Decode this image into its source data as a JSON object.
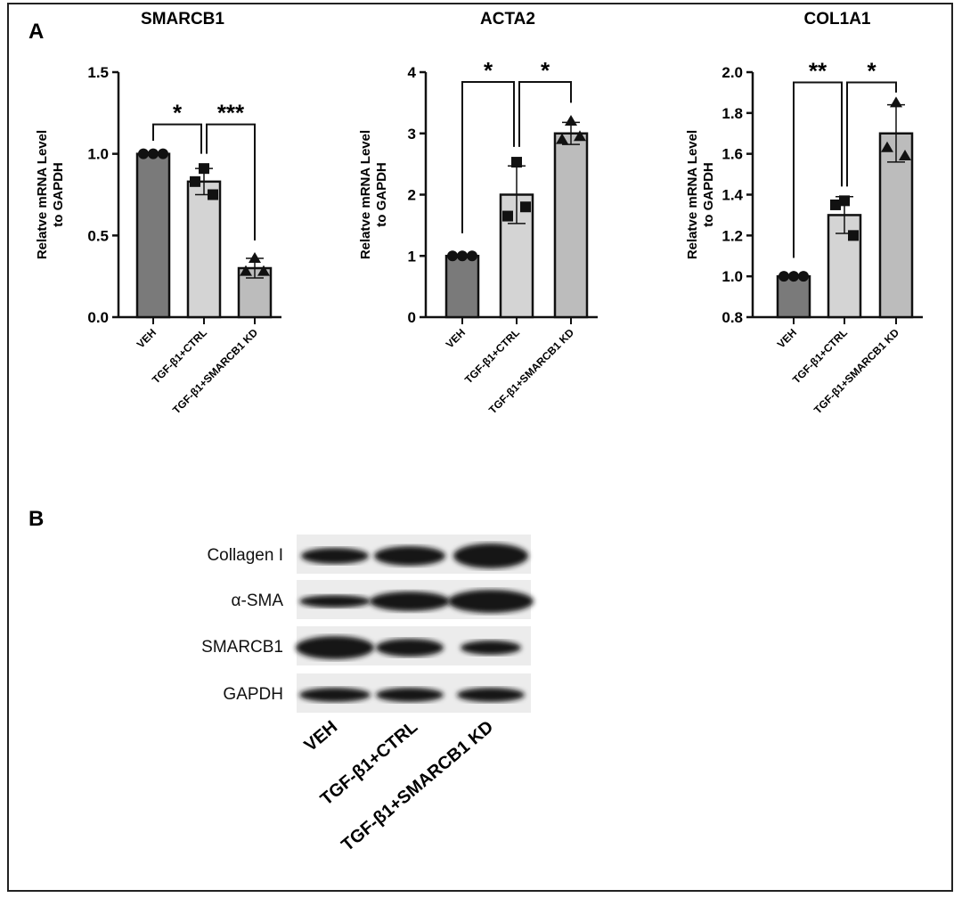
{
  "panel_labels": {
    "a": "A",
    "b": "B"
  },
  "chart_data": [
    {
      "type": "bar",
      "title": "SMARCB1",
      "ylabel": "Relatve mRNA Level to GAPDH",
      "ylabel_lines": [
        "Relatve mRNA Level",
        "to GAPDH"
      ],
      "categories": [
        "VEH",
        "TGF-β1+CTRL",
        "TGF-β1+SMARCB1 KD"
      ],
      "values": [
        1.0,
        0.83,
        0.3
      ],
      "sd": [
        0.0,
        0.08,
        0.06
      ],
      "points": [
        [
          1.0,
          1.0,
          1.0
        ],
        [
          0.91,
          0.83,
          0.75
        ],
        [
          0.36,
          0.28,
          0.28
        ]
      ],
      "ylim": [
        0,
        1.5
      ],
      "yticks": [
        "0.0",
        "0.5",
        "1.0",
        "1.5"
      ],
      "ytick_values": [
        0,
        0.5,
        1.0,
        1.5
      ],
      "significance": [
        {
          "from": 0,
          "to": 1,
          "label": "*",
          "level": 1.18,
          "legs": [
            1.08,
            1.0
          ]
        },
        {
          "from": 1,
          "to": 2,
          "label": "***",
          "level": 1.18,
          "legs": [
            1.0,
            0.47
          ]
        }
      ]
    },
    {
      "type": "bar",
      "title": "ACTA2",
      "ylabel": "Relatve mRNA Level to GAPDH",
      "ylabel_lines": [
        "Relatve mRNA Level",
        "to GAPDH"
      ],
      "categories": [
        "VEH",
        "TGF-β1+CTRL",
        "TGF-β1+SMARCB1 KD"
      ],
      "values": [
        1.0,
        2.0,
        3.0
      ],
      "sd": [
        0.0,
        0.47,
        0.18
      ],
      "points": [
        [
          1.0,
          1.0,
          1.0
        ],
        [
          2.53,
          1.65,
          1.8
        ],
        [
          3.2,
          2.9,
          2.95
        ]
      ],
      "ylim": [
        0,
        4
      ],
      "yticks": [
        "0",
        "1",
        "2",
        "3",
        "4"
      ],
      "ytick_values": [
        0,
        1,
        2,
        3,
        4
      ],
      "significance": [
        {
          "from": 0,
          "to": 1,
          "label": "*",
          "level": 3.84,
          "legs": [
            1.37,
            2.78
          ]
        },
        {
          "from": 1,
          "to": 2,
          "label": "*",
          "level": 3.84,
          "legs": [
            2.78,
            3.5
          ]
        }
      ]
    },
    {
      "type": "bar",
      "title": "COL1A1",
      "ylabel": "Relatve mRNA Level to GAPDH",
      "ylabel_lines": [
        "Relatve mRNA Level",
        "to GAPDH"
      ],
      "categories": [
        "VEH",
        "TGF-β1+CTRL",
        "TGF-β1+SMARCB1 KD"
      ],
      "values": [
        1.0,
        1.3,
        1.7
      ],
      "sd": [
        0.0,
        0.09,
        0.14
      ],
      "points": [
        [
          1.0,
          1.0,
          1.0
        ],
        [
          1.37,
          1.35,
          1.2
        ],
        [
          1.85,
          1.63,
          1.59
        ]
      ],
      "ylim": [
        0.8,
        2.0
      ],
      "yticks": [
        "0.8",
        "1.0",
        "1.2",
        "1.4",
        "1.6",
        "1.8",
        "2.0"
      ],
      "ytick_values": [
        0.8,
        1.0,
        1.2,
        1.4,
        1.6,
        1.8,
        2.0
      ],
      "significance": [
        {
          "from": 0,
          "to": 1,
          "label": "**",
          "level": 1.95,
          "legs": [
            1.09,
            1.44
          ]
        },
        {
          "from": 1,
          "to": 2,
          "label": "*",
          "level": 1.95,
          "legs": [
            1.44,
            1.9
          ]
        }
      ]
    }
  ],
  "series_colors": [
    "#7a7a7a",
    "#d4d4d4",
    "#bcbcbc"
  ],
  "western_blot": {
    "rows": [
      "Collagen I",
      "α-SMA",
      "SMARCB1",
      "GAPDH"
    ],
    "lanes": [
      "VEH",
      "TGF-β1+CTRL",
      "TGF-β1+SMARCB1 KD"
    ]
  }
}
